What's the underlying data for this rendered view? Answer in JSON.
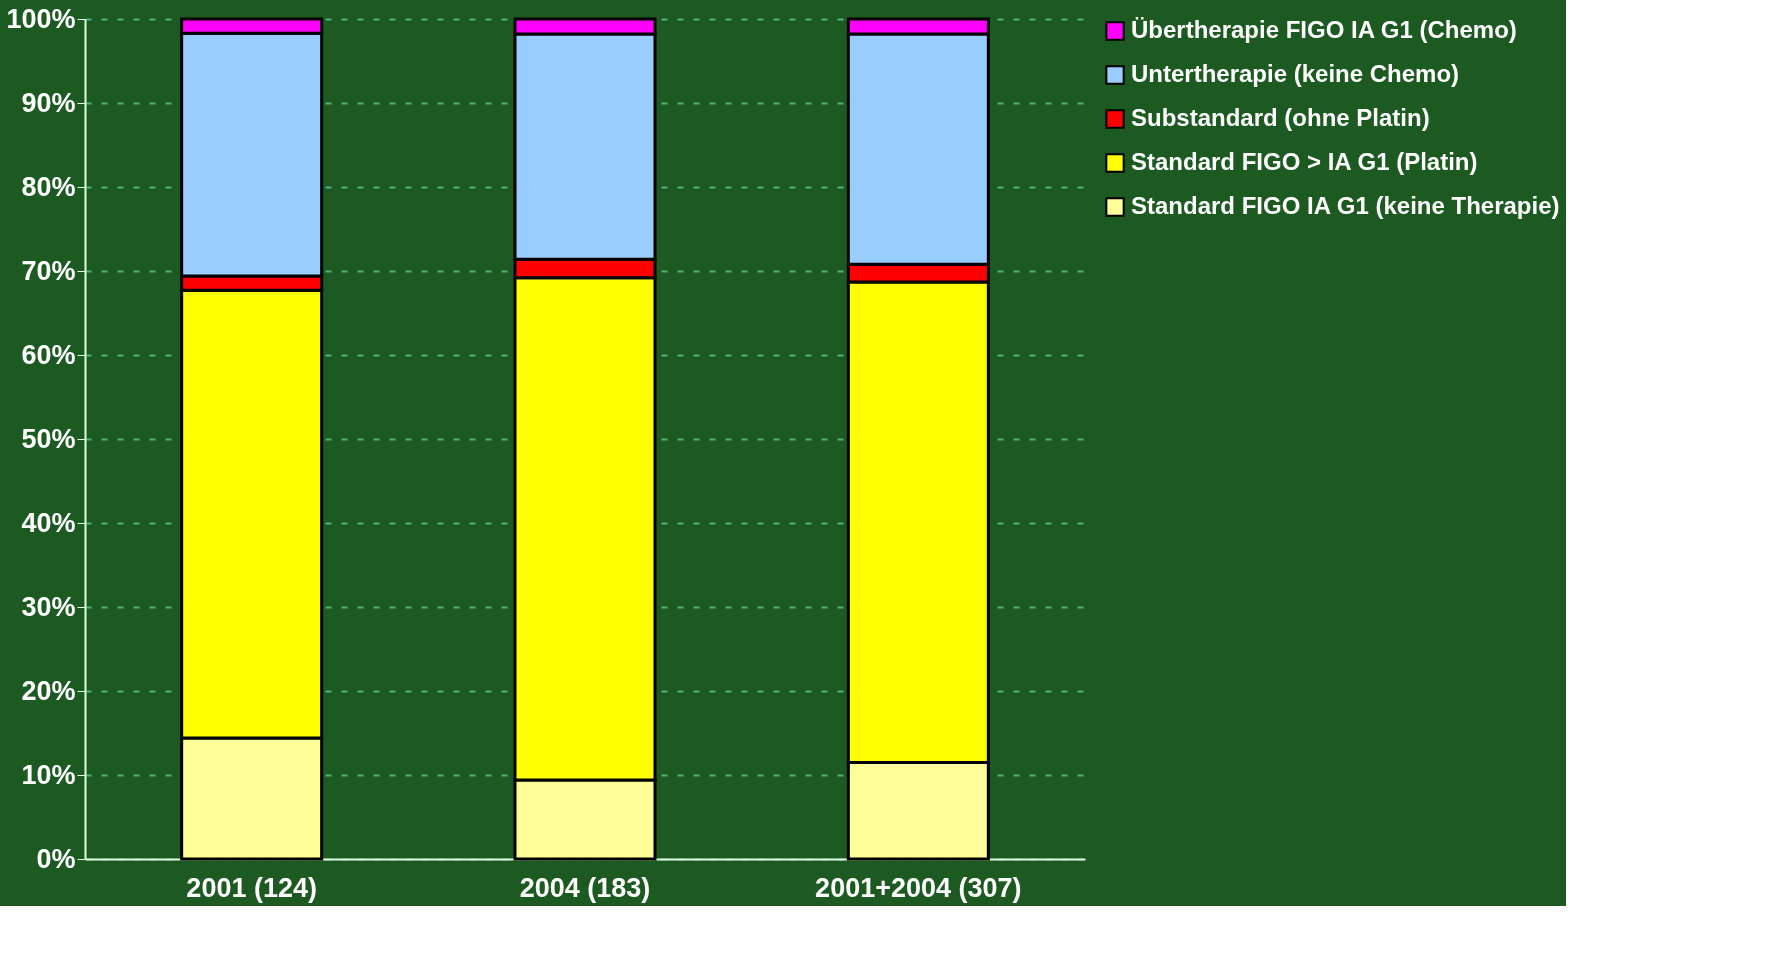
{
  "chart_data": {
    "type": "bar",
    "stacked": true,
    "categories": [
      "2001 (124)",
      "2004 (183)",
      "2001+2004 (307)"
    ],
    "series": [
      {
        "name": "Standard FIGO IA G1 (keine Therapie)",
        "color": "#ffff99",
        "values": [
          14.4,
          9.4,
          11.5
        ]
      },
      {
        "name": "Standard FIGO > IA G1 (Platin)",
        "color": "#ffff00",
        "values": [
          53.3,
          59.8,
          57.2
        ]
      },
      {
        "name": "Substandard (ohne Platin)",
        "color": "#ff0000",
        "values": [
          1.7,
          2.2,
          2.1
        ]
      },
      {
        "name": "Untertherapie (keine Chemo)",
        "color": "#99ccff",
        "values": [
          28.9,
          26.8,
          27.4
        ]
      },
      {
        "name": "Übertherapie FIGO IA G1 (Chemo)",
        "color": "#ff00ff",
        "values": [
          1.7,
          1.8,
          1.8
        ]
      }
    ],
    "ylim": [
      0,
      100
    ],
    "yticks": [
      {
        "value": 0,
        "label": "0%"
      },
      {
        "value": 10,
        "label": "10%"
      },
      {
        "value": 20,
        "label": "20%"
      },
      {
        "value": 30,
        "label": "30%"
      },
      {
        "value": 40,
        "label": "40%"
      },
      {
        "value": 50,
        "label": "50%"
      },
      {
        "value": 60,
        "label": "60%"
      },
      {
        "value": 70,
        "label": "70%"
      },
      {
        "value": 80,
        "label": "80%"
      },
      {
        "value": 90,
        "label": "90%"
      },
      {
        "value": 100,
        "label": "100%"
      }
    ],
    "grid": "y",
    "legend": "right"
  }
}
